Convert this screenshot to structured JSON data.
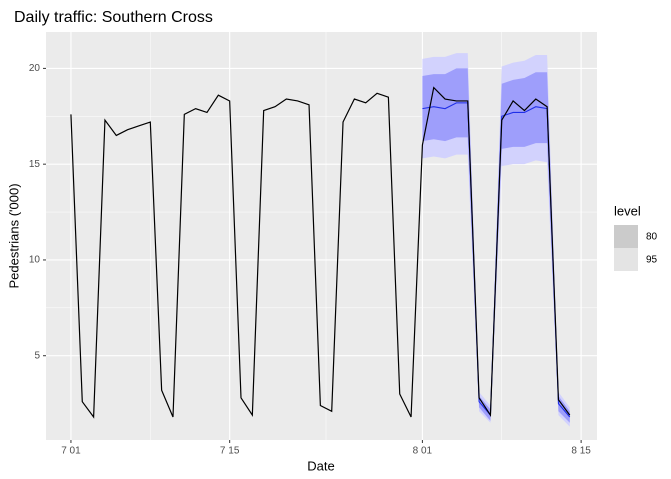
{
  "chart_data": {
    "type": "line",
    "title": "Daily traffic: Southern Cross",
    "x_label": "Date",
    "y_label": "Pedestrians ('000)",
    "x": [
      0,
      1,
      2,
      3,
      4,
      5,
      6,
      7,
      8,
      9,
      10,
      11,
      12,
      13,
      14,
      15,
      16,
      17,
      18,
      19,
      20,
      21,
      22,
      23,
      24,
      25,
      26,
      27,
      28,
      29,
      30,
      31,
      32,
      33,
      34,
      35,
      36,
      37,
      38,
      39,
      40,
      41,
      42,
      43,
      44
    ],
    "values": [
      17.6,
      2.6,
      1.8,
      17.3,
      16.5,
      16.8,
      17.0,
      17.2,
      3.2,
      1.8,
      17.6,
      17.9,
      17.7,
      18.6,
      18.3,
      2.8,
      1.9,
      17.8,
      18.0,
      18.4,
      18.3,
      18.1,
      2.4,
      2.1,
      17.2,
      18.4,
      18.2,
      18.7,
      18.5,
      3.0,
      1.8,
      16.0,
      19.0,
      18.4,
      18.3,
      18.3,
      2.8,
      1.9,
      17.3,
      18.3,
      17.8,
      18.4,
      18.0,
      2.7,
      1.9
    ],
    "color": "#000000",
    "forecast": {
      "color": "#1f2fe8",
      "x": [
        31,
        32,
        33,
        34,
        35,
        36,
        37,
        38,
        39,
        40,
        41,
        42,
        43,
        44
      ],
      "values": [
        17.9,
        18.0,
        17.9,
        18.2,
        18.2,
        2.6,
        1.9,
        17.5,
        17.7,
        17.7,
        18.0,
        17.9,
        2.5,
        1.8
      ],
      "intervals": [
        {
          "level": 95,
          "color": "#d2d2fd",
          "lower": [
            15.3,
            15.4,
            15.3,
            15.5,
            15.5,
            2.1,
            1.5,
            14.9,
            15.0,
            15.0,
            15.2,
            15.1,
            1.9,
            1.3
          ],
          "upper": [
            20.5,
            20.6,
            20.6,
            20.8,
            20.8,
            3.1,
            2.4,
            20.1,
            20.3,
            20.4,
            20.7,
            20.7,
            3.1,
            2.3
          ]
        },
        {
          "level": 80,
          "color": "#9e9efb",
          "lower": [
            16.2,
            16.3,
            16.2,
            16.4,
            16.4,
            2.3,
            1.6,
            15.8,
            15.9,
            15.9,
            16.1,
            16.1,
            2.1,
            1.5
          ],
          "upper": [
            19.6,
            19.7,
            19.7,
            20.0,
            20.0,
            2.9,
            2.2,
            19.2,
            19.4,
            19.5,
            19.8,
            19.8,
            2.9,
            2.1
          ]
        }
      ]
    },
    "legend_title": "level",
    "xlim": [
      -2.2,
      46.4
    ],
    "xticks": [
      {
        "value": 0,
        "label": "7 01"
      },
      {
        "value": 14,
        "label": "7 15"
      },
      {
        "value": 31,
        "label": "8 01"
      },
      {
        "value": 45,
        "label": "8 15"
      }
    ],
    "ylim": [
      0.6,
      21.9
    ],
    "yticks": [
      5,
      10,
      15,
      20
    ],
    "grid": true
  }
}
